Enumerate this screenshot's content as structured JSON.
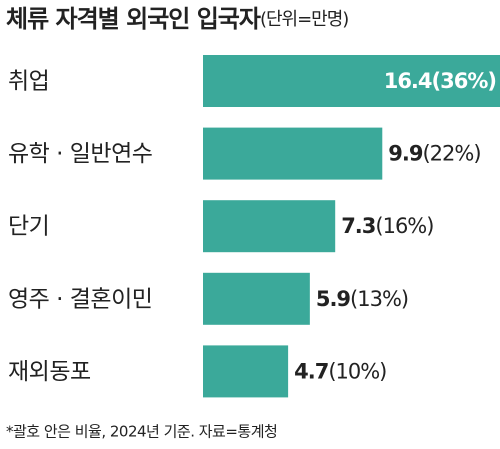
{
  "chart_data": {
    "type": "bar",
    "orientation": "horizontal",
    "title": "체류 자격별 외국인 입국자",
    "unit": "(단위=만명)",
    "categories": [
      "취업",
      "유학 · 일반연수",
      "단기",
      "영주 · 결혼이민",
      "재외동포"
    ],
    "values": [
      16.4,
      9.9,
      7.3,
      5.9,
      4.7
    ],
    "share_labels": [
      "(36%)",
      "(22%)",
      "(16%)",
      "(13%)",
      "(10%)"
    ],
    "color": "#3ba99a",
    "note": "*괄호 안은 비율, 2024년 기준. 자료=통계청"
  }
}
